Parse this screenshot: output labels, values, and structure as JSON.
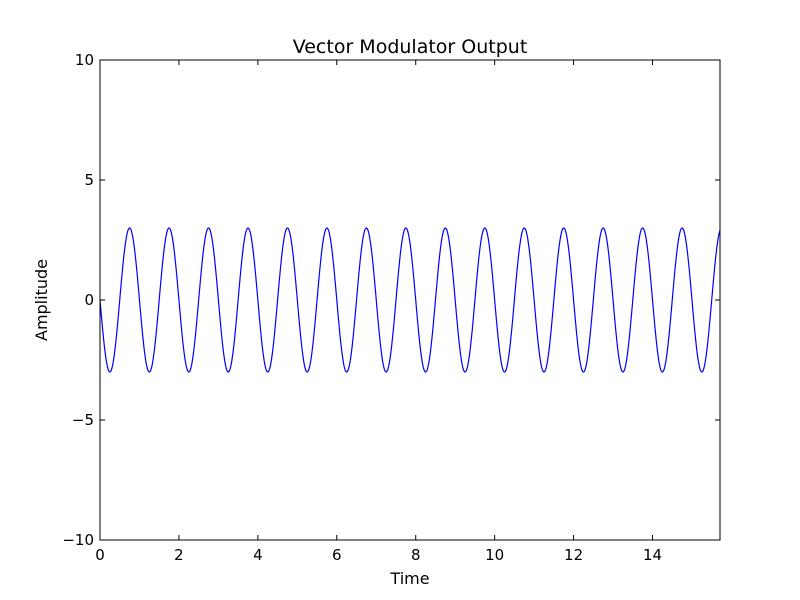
{
  "chart_data": {
    "type": "line",
    "title": "Vector Modulator Output",
    "xlabel": "Time",
    "ylabel": "Amplitude",
    "xlim": [
      0,
      15.71
    ],
    "ylim": [
      -10,
      10
    ],
    "x_ticks": [
      0,
      2,
      4,
      6,
      8,
      10,
      12,
      14
    ],
    "x_tick_labels": [
      "0",
      "2",
      "4",
      "6",
      "8",
      "10",
      "12",
      "14"
    ],
    "y_ticks": [
      -10,
      -5,
      0,
      5,
      10
    ],
    "y_tick_labels": [
      "−10",
      "−5",
      "0",
      "5",
      "10"
    ],
    "grid": false,
    "legend": "none",
    "line_color": "#0000ff",
    "series": [
      {
        "function": "-3*sin(2*pi*t)",
        "amplitude": 3,
        "frequency_hz": 1,
        "phase": "inverted sine",
        "x_start": 0,
        "x_end": 15.71,
        "x_step": 0.01
      }
    ]
  }
}
